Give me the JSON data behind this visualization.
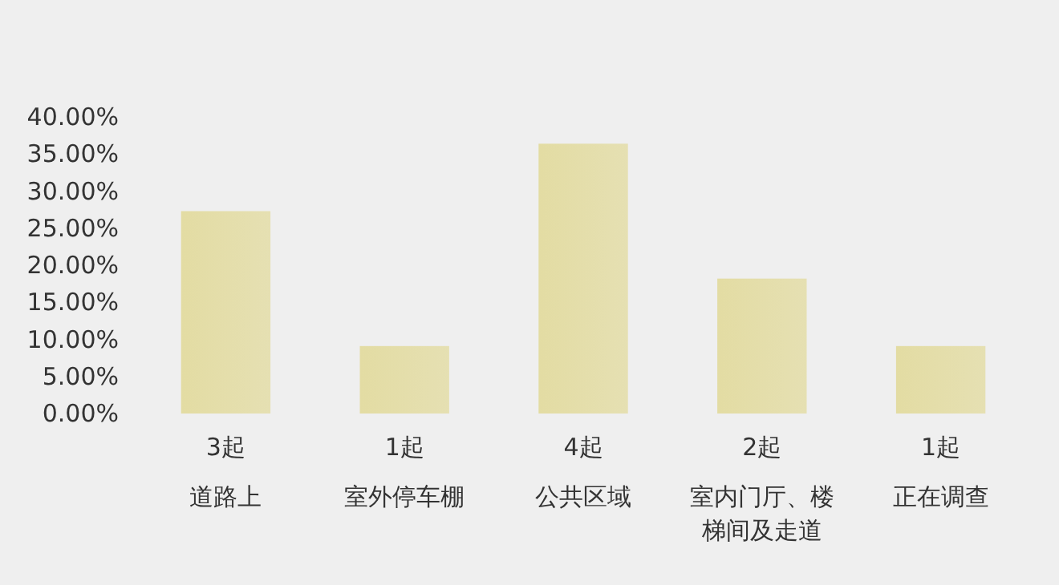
{
  "chart_data": {
    "type": "bar",
    "categories": [
      "道路上",
      "室外停车棚",
      "公共区域",
      "室内门厅、楼梯间及走道",
      "正在调查"
    ],
    "annotations": [
      {
        "text": "3起",
        "x": "道路上",
        "y": 0
      },
      {
        "text": "1起",
        "x": "室外停车棚",
        "y": 0
      },
      {
        "text": "4起",
        "x": "公共区域",
        "y": 0
      },
      {
        "text": "2起",
        "x": "室内门厅、楼梯间及走道",
        "y": 0
      },
      {
        "text": "1起",
        "x": "正在调查",
        "y": 0
      }
    ],
    "values": [
      27.3,
      9.1,
      36.4,
      18.2,
      9.1
    ],
    "color": "#e3dca3",
    "ylim": [
      0,
      40
    ],
    "yticks": [
      {
        "value": 0,
        "label": "0.00%"
      },
      {
        "value": 5,
        "label": "5.00%"
      },
      {
        "value": 10,
        "label": "10.00%"
      },
      {
        "value": 15,
        "label": "15.00%"
      },
      {
        "value": 20,
        "label": "20.00%"
      },
      {
        "value": 25,
        "label": "25.00%"
      },
      {
        "value": 30,
        "label": "30.00%"
      },
      {
        "value": 35,
        "label": "35.00%"
      },
      {
        "value": 40,
        "label": "40.00%"
      }
    ],
    "grid": false
  }
}
